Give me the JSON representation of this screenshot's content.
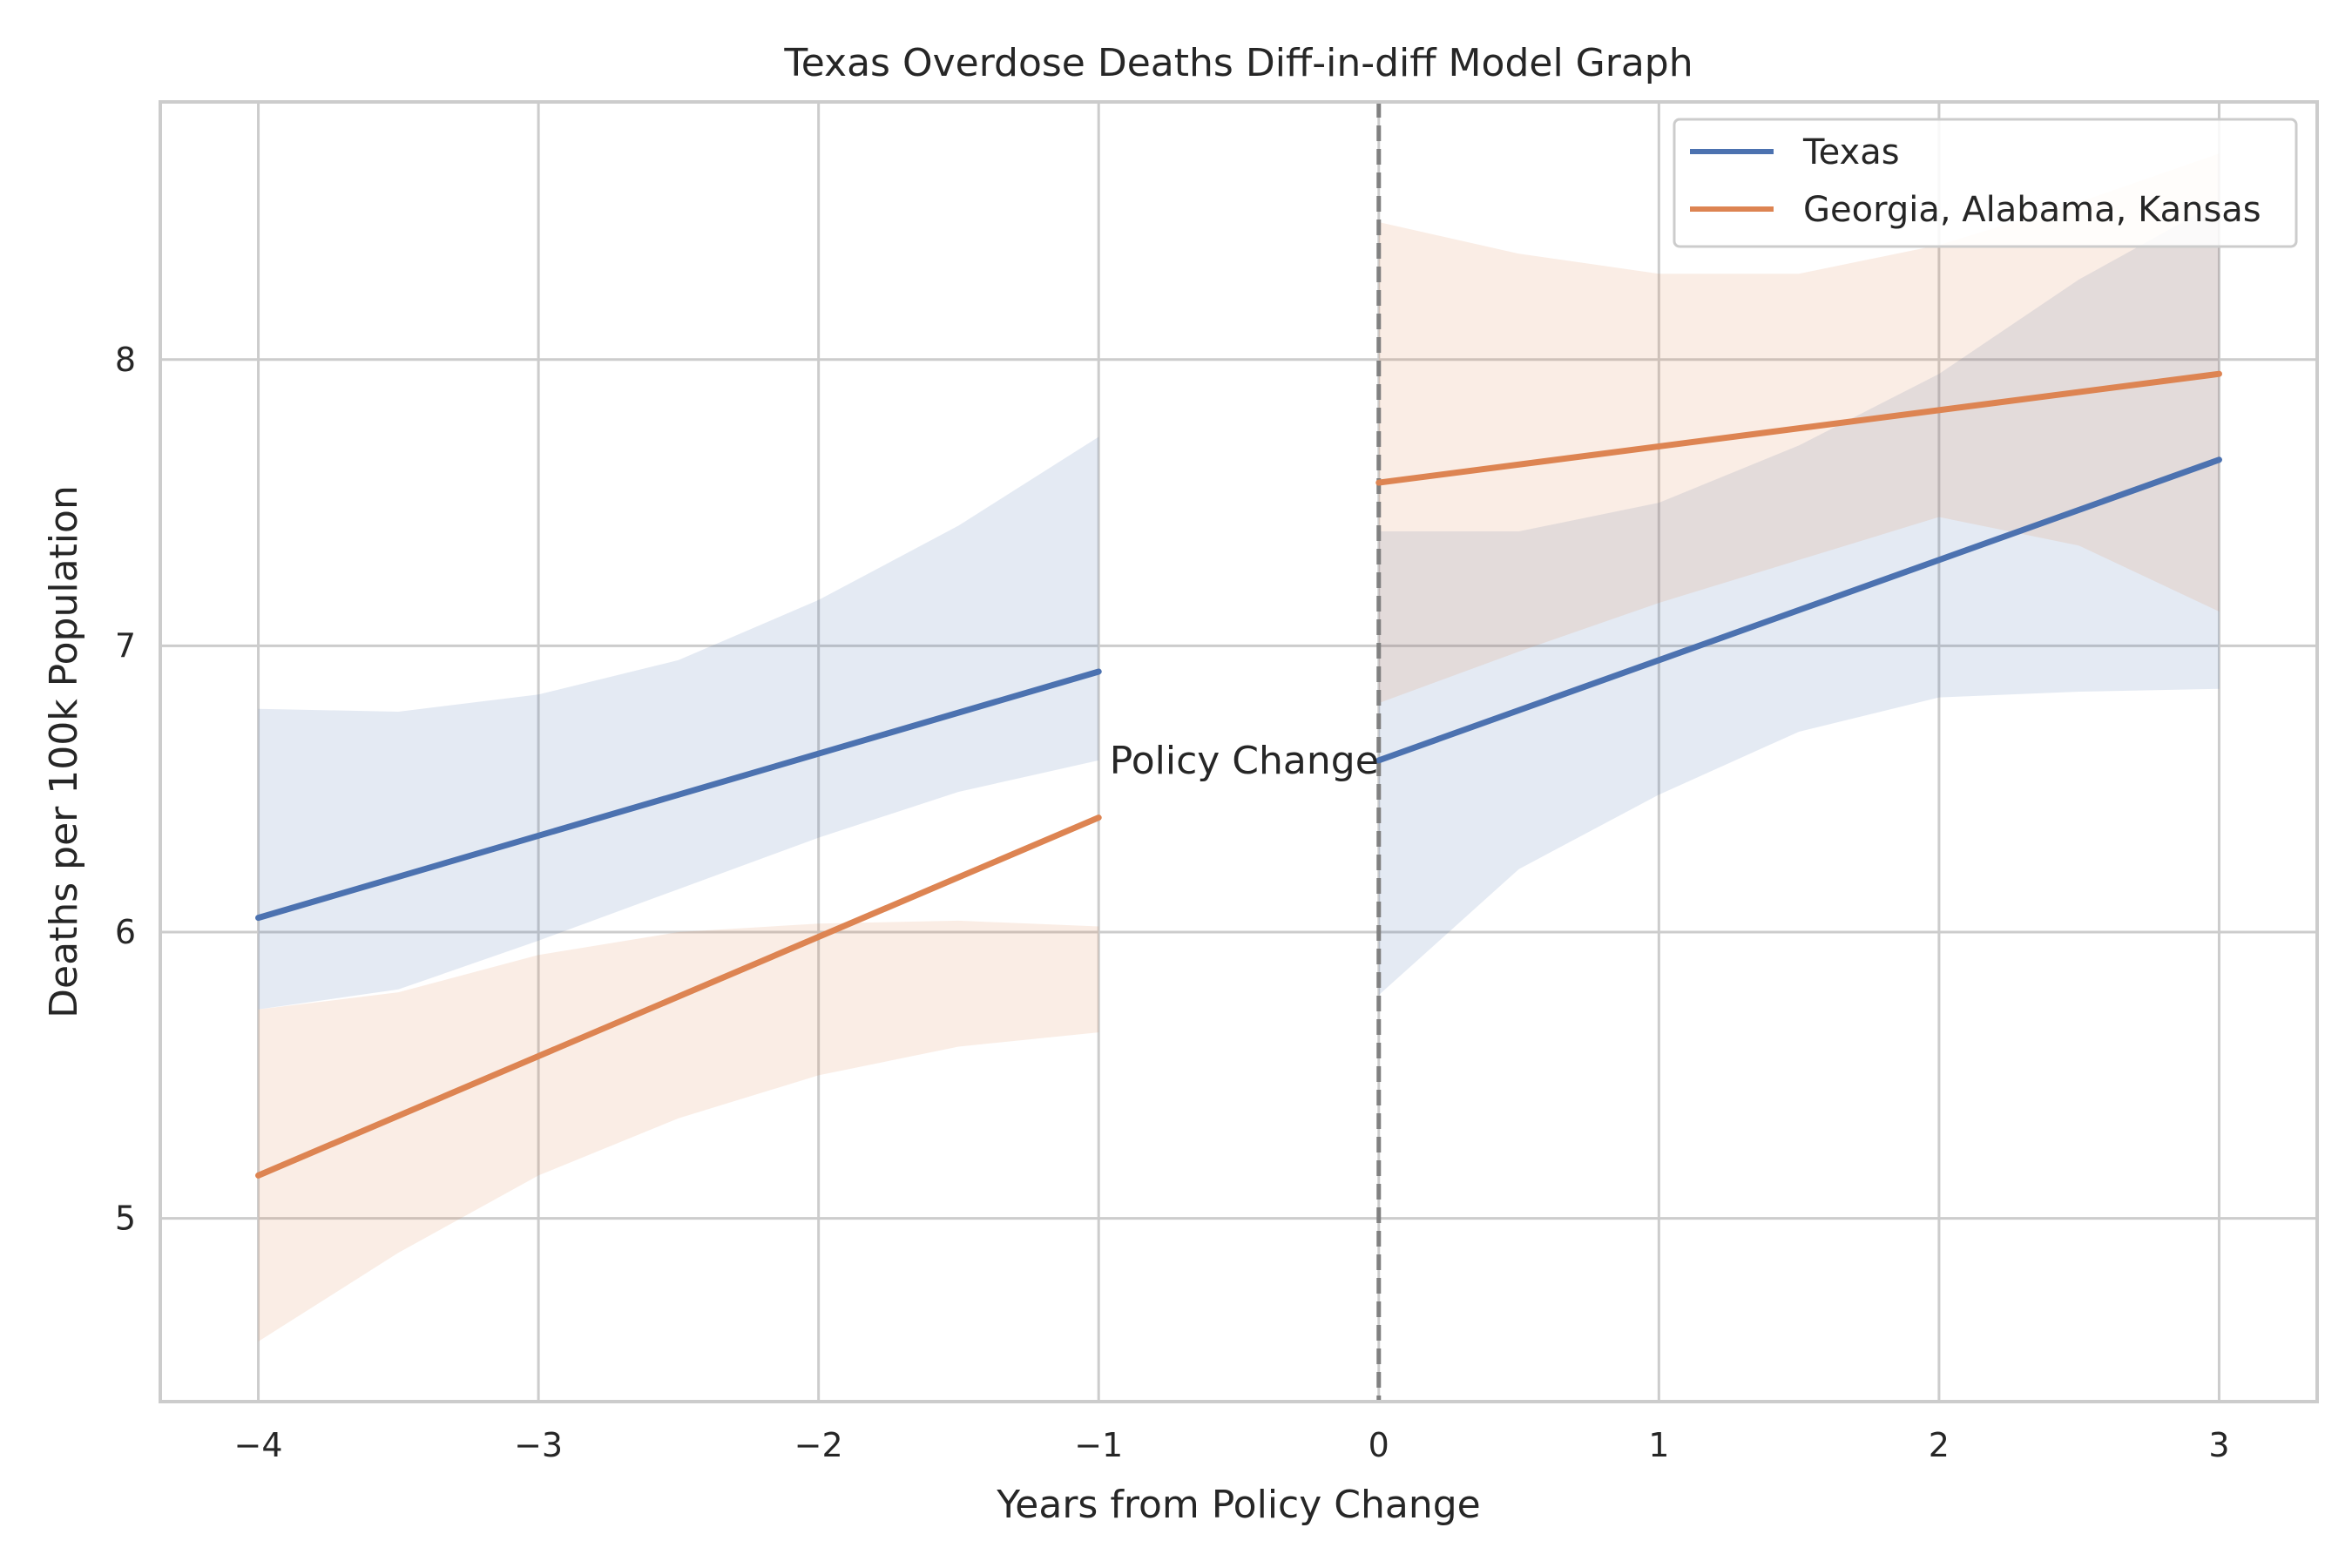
{
  "chart_data": {
    "type": "line",
    "title": "Texas Overdose Deaths Diff-in-diff Model Graph",
    "xlabel": "Years from Policy Change",
    "ylabel": "Deaths per 100k Population",
    "xlim": [
      -4.35,
      3.35
    ],
    "ylim": [
      4.36,
      8.9
    ],
    "xticks": [
      -4,
      -3,
      -2,
      -1,
      0,
      1,
      2,
      3
    ],
    "xtick_labels": [
      "−4",
      "−3",
      "−2",
      "−1",
      "0",
      "1",
      "2",
      "3"
    ],
    "yticks": [
      5,
      6,
      7,
      8
    ],
    "ytick_labels": [
      "5",
      "6",
      "7",
      "8"
    ],
    "grid": true,
    "legend_position": "top-right",
    "vline": {
      "x": 0,
      "style": "dashed",
      "color": "#808080"
    },
    "annotation": {
      "text": "Policy Change",
      "x": 0,
      "y": 6.6
    },
    "series": [
      {
        "name": "Texas",
        "color": "#4c72b0",
        "segments": [
          {
            "x": [
              -4,
              -1
            ],
            "y": [
              6.05,
              6.91
            ],
            "band": {
              "x": [
                -4,
                -3.5,
                -3,
                -2.5,
                -2,
                -1.5,
                -1
              ],
              "lower": [
                5.73,
                5.8,
                5.97,
                6.15,
                6.33,
                6.49,
                6.6
              ],
              "upper": [
                6.78,
                6.77,
                6.83,
                6.95,
                7.16,
                7.42,
                7.73
              ]
            }
          },
          {
            "x": [
              0,
              3
            ],
            "y": [
              6.6,
              7.65
            ],
            "band": {
              "x": [
                0,
                0.5,
                1,
                1.5,
                2,
                2.5,
                3
              ],
              "lower": [
                5.78,
                6.22,
                6.48,
                6.7,
                6.82,
                6.84,
                6.85
              ],
              "upper": [
                7.4,
                7.4,
                7.5,
                7.7,
                7.95,
                8.28,
                8.55
              ]
            }
          }
        ]
      },
      {
        "name": "Georgia, Alabama, Kansas",
        "color": "#dd8452",
        "segments": [
          {
            "x": [
              -4,
              -1
            ],
            "y": [
              5.15,
              6.4
            ],
            "band": {
              "x": [
                -4,
                -3.5,
                -3,
                -2.5,
                -2,
                -1.5,
                -1
              ],
              "lower": [
                4.57,
                4.88,
                5.15,
                5.35,
                5.5,
                5.6,
                5.65
              ],
              "upper": [
                5.73,
                5.79,
                5.92,
                6.0,
                6.03,
                6.04,
                6.02
              ]
            }
          },
          {
            "x": [
              0,
              3
            ],
            "y": [
              7.57,
              7.95
            ],
            "band": {
              "x": [
                0,
                0.5,
                1,
                1.5,
                2,
                2.5,
                3
              ],
              "lower": [
                6.8,
                6.98,
                7.15,
                7.3,
                7.45,
                7.35,
                7.12
              ],
              "upper": [
                8.48,
                8.37,
                8.3,
                8.3,
                8.4,
                8.55,
                8.72
              ]
            }
          }
        ]
      }
    ]
  }
}
